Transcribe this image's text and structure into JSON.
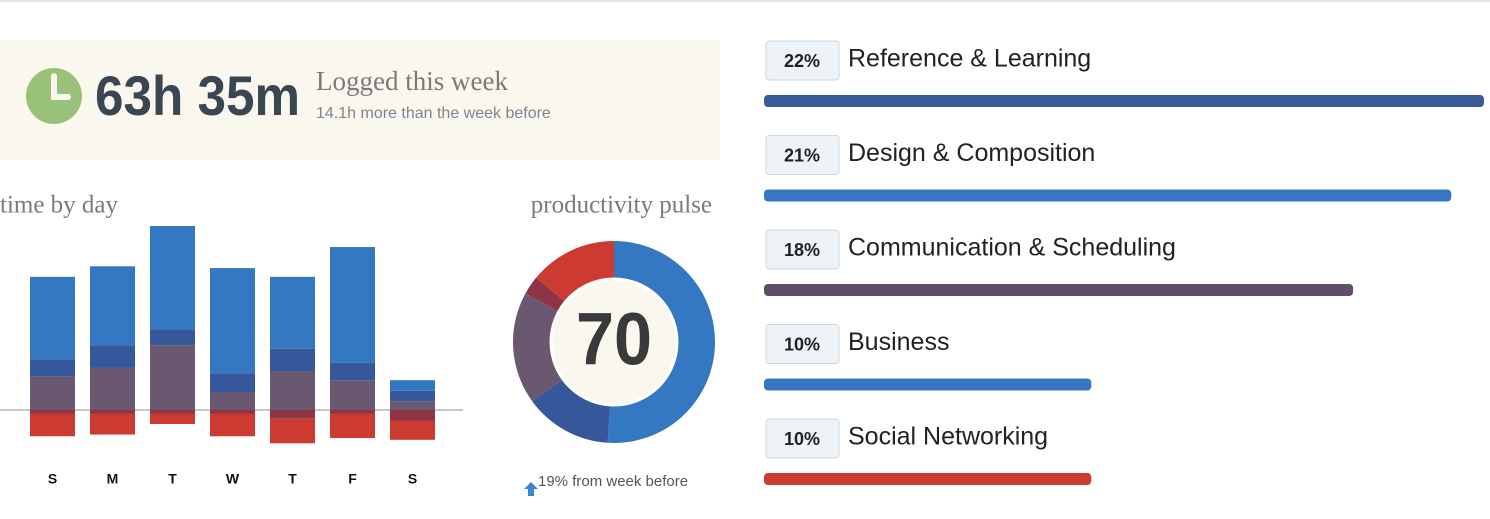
{
  "header": {
    "total": "63h 35m",
    "label": "Logged this week",
    "note": "14.1h more than the week before"
  },
  "chart_data": [
    {
      "type": "stacked-bar",
      "title": "time by day",
      "categories": [
        "S",
        "M",
        "T",
        "W",
        "T",
        "F",
        "S"
      ],
      "series": [
        {
          "color": "#6a5770",
          "values": [
            1.9,
            2.4,
            3.7,
            1.0,
            2.2,
            1.7,
            0.5
          ]
        },
        {
          "color": "#36589a",
          "values": [
            1.0,
            1.3,
            0.9,
            1.1,
            1.3,
            1.0,
            0.6
          ]
        },
        {
          "color": "#3478c2",
          "values": [
            4.7,
            4.5,
            5.9,
            6.0,
            4.1,
            6.6,
            0.6
          ]
        },
        {
          "color": "#8e3446",
          "values": [
            -0.2,
            -0.2,
            -0.2,
            -0.2,
            -0.5,
            -0.2,
            -0.6
          ]
        },
        {
          "color": "#cc3a32",
          "values": [
            -1.3,
            -1.2,
            -0.6,
            -1.3,
            -1.4,
            -1.4,
            -1.1
          ]
        }
      ]
    },
    {
      "type": "donut",
      "title": "productivity pulse",
      "center_value": 70,
      "caption": "19% from week before",
      "values": [
        51,
        14,
        18,
        3,
        14
      ],
      "colors": [
        "#3478c2",
        "#36589a",
        "#6a5770",
        "#8e3446",
        "#cc3a32"
      ]
    },
    {
      "type": "hbar",
      "categories": [
        "Reference & Learning",
        "Design & Composition",
        "Communication & Scheduling",
        "Business",
        "Social Networking"
      ],
      "values": [
        22,
        21,
        18,
        10,
        10
      ],
      "value_labels": [
        "22%",
        "21%",
        "18%",
        "10%",
        "10%"
      ],
      "colors": [
        "#3a5a98",
        "#3677c4",
        "#5f4e68",
        "#3677c4",
        "#cc3b33"
      ]
    }
  ]
}
